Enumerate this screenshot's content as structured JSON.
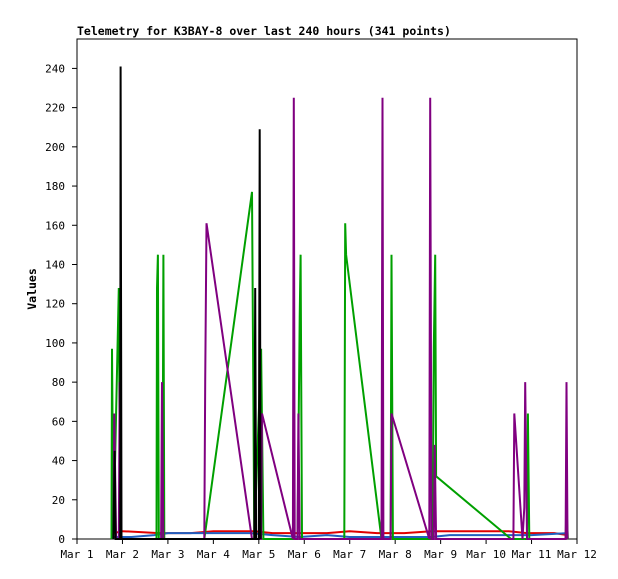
{
  "chart_data": {
    "type": "line",
    "title": "Telemetry for K3BAY-8 over last 240 hours (341 points)",
    "xlabel": "",
    "ylabel": "Values",
    "x_tick_labels": [
      "Mar 1",
      "Mar 2",
      "Mar 3",
      "Mar 4",
      "Mar 5",
      "Mar 6",
      "Mar 7",
      "Mar 8",
      "Mar 9",
      "Mar 10",
      "Mar 11",
      "Mar 12"
    ],
    "x_range": [
      1.0,
      12.0
    ],
    "ylim": [
      0,
      255
    ],
    "y_ticks": [
      0,
      20,
      40,
      60,
      80,
      100,
      120,
      140,
      160,
      180,
      200,
      220,
      240
    ],
    "grid": false,
    "legend": "none",
    "series": [
      {
        "color": "#e00000",
        "points": [
          [
            1.8,
            3
          ],
          [
            2.0,
            4
          ],
          [
            2.8,
            3
          ],
          [
            3.5,
            3
          ],
          [
            4.0,
            4
          ],
          [
            4.9,
            4
          ],
          [
            5.3,
            3
          ],
          [
            5.9,
            3
          ],
          [
            6.5,
            3
          ],
          [
            7.0,
            4
          ],
          [
            7.6,
            3
          ],
          [
            8.2,
            3
          ],
          [
            8.8,
            4
          ],
          [
            9.5,
            4
          ],
          [
            10.5,
            4
          ],
          [
            10.9,
            3
          ],
          [
            11.5,
            3
          ],
          [
            11.8,
            2
          ]
        ]
      },
      {
        "color": "#2060c0",
        "points": [
          [
            1.8,
            1
          ],
          [
            2.2,
            1
          ],
          [
            2.7,
            2
          ],
          [
            3.0,
            3
          ],
          [
            3.5,
            3
          ],
          [
            4.0,
            3
          ],
          [
            4.8,
            3
          ],
          [
            5.3,
            2
          ],
          [
            5.9,
            1
          ],
          [
            6.5,
            2
          ],
          [
            7.0,
            1
          ],
          [
            7.6,
            1
          ],
          [
            8.0,
            1
          ],
          [
            8.8,
            1
          ],
          [
            9.2,
            2
          ],
          [
            10.5,
            2
          ],
          [
            11.0,
            2
          ],
          [
            11.8,
            3
          ]
        ]
      },
      {
        "color": "#00a000",
        "points": [
          [
            1.76,
            0
          ],
          [
            1.77,
            97
          ],
          [
            1.8,
            0
          ],
          [
            1.92,
            128
          ],
          [
            1.95,
            0
          ],
          [
            2.75,
            0
          ],
          [
            2.76,
            128
          ],
          [
            2.78,
            145
          ],
          [
            2.8,
            0
          ],
          [
            2.88,
            0
          ],
          [
            2.9,
            145
          ],
          [
            2.92,
            0
          ],
          [
            3.8,
            0
          ],
          [
            4.85,
            177
          ],
          [
            4.9,
            0
          ],
          [
            5.05,
            97
          ],
          [
            5.1,
            0
          ],
          [
            5.85,
            0
          ],
          [
            5.9,
            113
          ],
          [
            5.92,
            145
          ],
          [
            5.95,
            0
          ],
          [
            6.88,
            0
          ],
          [
            6.9,
            161
          ],
          [
            6.92,
            145
          ],
          [
            7.7,
            0
          ],
          [
            7.9,
            0
          ],
          [
            7.92,
            145
          ],
          [
            7.95,
            0
          ],
          [
            8.82,
            0
          ],
          [
            8.85,
            97
          ],
          [
            8.88,
            145
          ],
          [
            8.9,
            32
          ],
          [
            10.55,
            0
          ],
          [
            10.9,
            0
          ],
          [
            10.92,
            64
          ],
          [
            10.95,
            0
          ],
          [
            11.75,
            0
          ],
          [
            11.77,
            16
          ],
          [
            11.8,
            0
          ]
        ]
      },
      {
        "color": "#800080",
        "points": [
          [
            1.8,
            0
          ],
          [
            1.82,
            64
          ],
          [
            1.86,
            0
          ],
          [
            1.92,
            0
          ],
          [
            1.94,
            80
          ],
          [
            1.96,
            0
          ],
          [
            2.85,
            0
          ],
          [
            2.87,
            80
          ],
          [
            2.9,
            0
          ],
          [
            3.8,
            0
          ],
          [
            3.82,
            80
          ],
          [
            3.85,
            161
          ],
          [
            4.85,
            0
          ],
          [
            5.05,
            0
          ],
          [
            5.07,
            64
          ],
          [
            5.75,
            0
          ],
          [
            5.77,
            225
          ],
          [
            5.79,
            0
          ],
          [
            5.85,
            0
          ],
          [
            5.87,
            64
          ],
          [
            5.9,
            0
          ],
          [
            7.7,
            0
          ],
          [
            7.72,
            225
          ],
          [
            7.74,
            0
          ],
          [
            7.9,
            0
          ],
          [
            7.92,
            64
          ],
          [
            8.75,
            0
          ],
          [
            8.77,
            225
          ],
          [
            8.8,
            0
          ],
          [
            8.85,
            0
          ],
          [
            8.87,
            48
          ],
          [
            8.9,
            0
          ],
          [
            10.6,
            0
          ],
          [
            10.62,
            64
          ],
          [
            10.8,
            0
          ],
          [
            10.84,
            16
          ],
          [
            10.86,
            80
          ],
          [
            10.9,
            0
          ],
          [
            11.75,
            0
          ],
          [
            11.77,
            80
          ],
          [
            11.79,
            0
          ]
        ]
      },
      {
        "color": "#000000",
        "points": [
          [
            1.8,
            0
          ],
          [
            1.83,
            45
          ],
          [
            1.85,
            0
          ],
          [
            1.95,
            0
          ],
          [
            1.96,
            241
          ],
          [
            1.98,
            0
          ],
          [
            4.9,
            0
          ],
          [
            4.92,
            128
          ],
          [
            4.94,
            0
          ],
          [
            5.0,
            0
          ],
          [
            5.02,
            209
          ],
          [
            5.04,
            0
          ]
        ]
      }
    ]
  }
}
